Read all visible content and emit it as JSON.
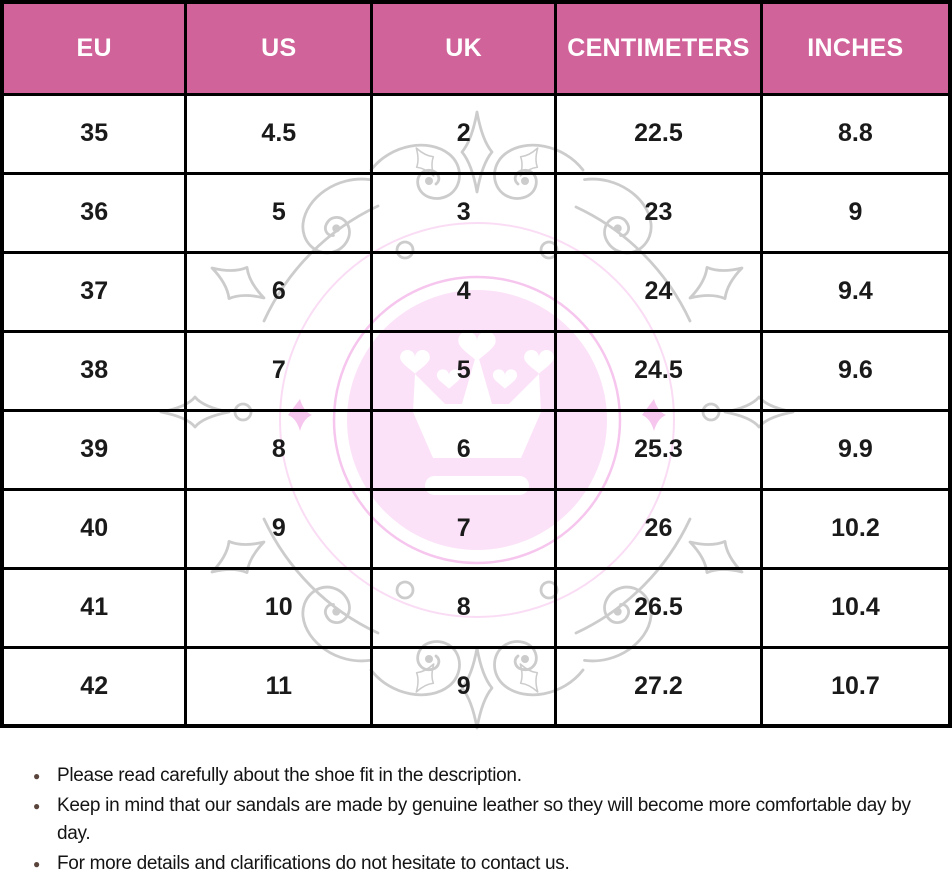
{
  "table": {
    "columns": [
      "EU",
      "US",
      "UK",
      "CENTIMETERS",
      "INCHES"
    ],
    "rows": [
      [
        "35",
        "4.5",
        "2",
        "22.5",
        "8.8"
      ],
      [
        "36",
        "5",
        "3",
        "23",
        "9"
      ],
      [
        "37",
        "6",
        "4",
        "24",
        "9.4"
      ],
      [
        "38",
        "7",
        "5",
        "24.5",
        "9.6"
      ],
      [
        "39",
        "8",
        "6",
        "25.3",
        "9.9"
      ],
      [
        "40",
        "9",
        "7",
        "26",
        "10.2"
      ],
      [
        "41",
        "10",
        "8",
        "26.5",
        "10.4"
      ],
      [
        "42",
        "11",
        "9",
        "27.2",
        "10.7"
      ]
    ],
    "header_bg": "#d06399",
    "header_text_color": "#ffffff"
  },
  "watermark": {
    "icon": "crown-ornament-watermark",
    "circle_fill": "#fbe2f8",
    "ring_color": "#f6c6ee",
    "sparkle_color": "#f6c6ee",
    "ornament_color": "#c8c8c8",
    "crown_color": "#ffffff"
  },
  "notes": {
    "bullet_color": "#5a453c",
    "items": [
      "Please read carefully about the shoe fit in the description.",
      "Keep in mind that our sandals are made by genuine leather so they will become more comfortable day by day.",
      "For more details and clarifications do not hesitate to contact us."
    ]
  }
}
